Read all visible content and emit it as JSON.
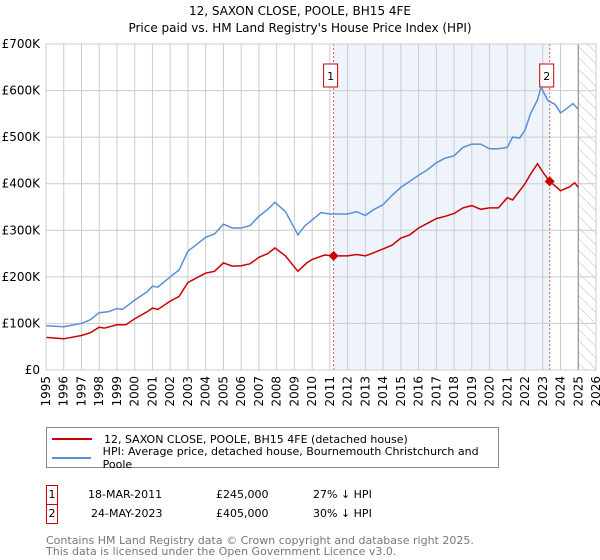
{
  "chart_data": {
    "type": "line",
    "title": "12, SAXON CLOSE, POOLE, BH15 4FE",
    "subtitle": "Price paid vs. HM Land Registry's House Price Index (HPI)",
    "xlim": [
      1995,
      2026
    ],
    "ylim": [
      0,
      700000
    ],
    "x_ticks": [
      "1995",
      "1996",
      "1997",
      "1998",
      "1999",
      "2000",
      "2001",
      "2002",
      "2003",
      "2004",
      "2005",
      "2006",
      "2007",
      "2008",
      "2009",
      "2010",
      "2011",
      "2012",
      "2013",
      "2014",
      "2015",
      "2016",
      "2017",
      "2018",
      "2019",
      "2020",
      "2021",
      "2022",
      "2023",
      "2024",
      "2025",
      "2026"
    ],
    "y_ticks": [
      {
        "v": 0,
        "label": "£0"
      },
      {
        "v": 100000,
        "label": "£100K"
      },
      {
        "v": 200000,
        "label": "£200K"
      },
      {
        "v": 300000,
        "label": "£300K"
      },
      {
        "v": 400000,
        "label": "£400K"
      },
      {
        "v": 500000,
        "label": "£500K"
      },
      {
        "v": 600000,
        "label": "£600K"
      },
      {
        "v": 700000,
        "label": "£700K"
      }
    ],
    "grid": true,
    "forecast_hatch_from": 2025.0,
    "series": [
      {
        "name": "12, SAXON CLOSE, POOLE, BH15 4FE (detached house)",
        "color": "#cc0000",
        "x": [
          1995,
          1996,
          1997,
          1997.5,
          1998,
          1998.3,
          1999,
          1999.5,
          2000,
          2000.7,
          2001,
          2001.3,
          2002,
          2002.5,
          2003,
          2003.5,
          2004,
          2004.5,
          2005,
          2005.5,
          2006,
          2006.5,
          2007,
          2007.5,
          2007.9,
          2008.5,
          2009.2,
          2009.7,
          2010,
          2010.7,
          2011.21,
          2012,
          2012.5,
          2013,
          2013.5,
          2014,
          2014.5,
          2015,
          2015.5,
          2016,
          2016.5,
          2017,
          2017.5,
          2018,
          2018.5,
          2019,
          2019.5,
          2020,
          2020.5,
          2021,
          2021.3,
          2021.7,
          2022,
          2022.3,
          2022.7,
          2023,
          2023.39,
          2023.7,
          2024,
          2024.5,
          2024.8,
          2025
        ],
        "y": [
          70000,
          67000,
          74000,
          80000,
          92000,
          90000,
          97000,
          97000,
          110000,
          125000,
          133000,
          130000,
          148000,
          158000,
          188000,
          198000,
          208000,
          212000,
          230000,
          223000,
          224000,
          228000,
          242000,
          250000,
          262000,
          245000,
          212000,
          230000,
          237000,
          247000,
          245000,
          245000,
          248000,
          245000,
          252000,
          260000,
          268000,
          283000,
          290000,
          305000,
          315000,
          325000,
          330000,
          336000,
          348000,
          353000,
          345000,
          348000,
          348000,
          370000,
          365000,
          385000,
          400000,
          420000,
          443000,
          425000,
          405000,
          395000,
          385000,
          393000,
          402000,
          392000
        ]
      },
      {
        "name": "HPI: Average price, detached house, Bournemouth Christchurch and Poole",
        "color": "#5b8fd4",
        "x": [
          1995,
          1996,
          1997,
          1997.5,
          1998,
          1998.5,
          1999,
          1999.3,
          2000,
          2000.7,
          2001,
          2001.3,
          2002,
          2002.5,
          2003,
          2003.5,
          2004,
          2004.5,
          2005,
          2005.5,
          2006,
          2006.5,
          2007,
          2007.5,
          2007.9,
          2008.5,
          2009.2,
          2009.6,
          2010,
          2010.5,
          2011,
          2012,
          2012.5,
          2013,
          2013.5,
          2014,
          2014.5,
          2015,
          2015.5,
          2016,
          2016.5,
          2017,
          2017.5,
          2018,
          2018.5,
          2019,
          2019.5,
          2020,
          2020.5,
          2021,
          2021.3,
          2021.7,
          2022,
          2022.3,
          2022.7,
          2022.9,
          2023.3,
          2023.7,
          2024,
          2024.3,
          2024.7,
          2025
        ],
        "y": [
          95000,
          93000,
          100000,
          108000,
          123000,
          125000,
          132000,
          130000,
          150000,
          168000,
          180000,
          178000,
          200000,
          215000,
          255000,
          270000,
          285000,
          292000,
          313000,
          305000,
          305000,
          310000,
          330000,
          345000,
          360000,
          340000,
          290000,
          310000,
          322000,
          338000,
          335000,
          335000,
          340000,
          332000,
          345000,
          355000,
          375000,
          392000,
          405000,
          418000,
          430000,
          445000,
          455000,
          460000,
          478000,
          485000,
          485000,
          475000,
          475000,
          478000,
          500000,
          498000,
          515000,
          550000,
          580000,
          607000,
          578000,
          570000,
          552000,
          560000,
          572000,
          560000
        ]
      }
    ],
    "sales": [
      {
        "label": "1",
        "x": 2011.21,
        "date": "18-MAR-2011",
        "price": "£245,000",
        "price_value": 245000,
        "hpi": "27% ↓ HPI"
      },
      {
        "label": "2",
        "x": 2023.39,
        "date": "24-MAY-2023",
        "price": "£405,000",
        "price_value": 405000,
        "hpi": "30% ↓ HPI"
      }
    ]
  },
  "footer": {
    "line1": "Contains HM Land Registry data © Crown copyright and database right 2025.",
    "line2": "This data is licensed under the Open Government Licence v3.0."
  }
}
